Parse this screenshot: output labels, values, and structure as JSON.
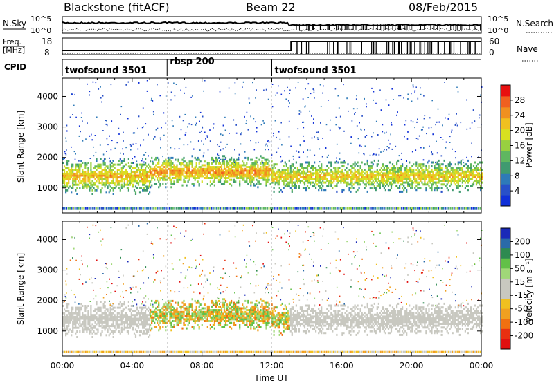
{
  "header": {
    "station": "Blackstone (fitACF)",
    "beam": "Beam 22",
    "date": "08/Feb/2015"
  },
  "noise_panel": {
    "left_label": "N.Sky",
    "right_label": "N.Search",
    "ticks_left": [
      "10^5",
      "10^0"
    ],
    "ticks_right": [
      "10^5",
      "10^0"
    ]
  },
  "freq_panel": {
    "left_label_line1": "Freq.",
    "left_label_line2": "[MHz]",
    "right_label": "Nave",
    "ticks_left": [
      "18",
      "8"
    ],
    "ticks_right": [
      "60",
      "0"
    ]
  },
  "cpid_panel": {
    "label": "CPID",
    "segments": [
      {
        "name": "twofsound 3501",
        "start_hour": 0,
        "end_hour": 6
      },
      {
        "name": "rbsp 200",
        "start_hour": 6,
        "end_hour": 12
      },
      {
        "name": "twofsound 3501",
        "start_hour": 12,
        "end_hour": 24
      }
    ]
  },
  "chart_data": [
    {
      "type": "heatmap",
      "title": "",
      "ylabel": "Slant Range [km]",
      "xlabel": "Time UT",
      "xlim": [
        0,
        24
      ],
      "ylim": [
        180,
        4600
      ],
      "yticks": [
        1000,
        2000,
        3000,
        4000
      ],
      "colorbar_label": "Power [dB]",
      "colorbar_ticks": [
        "4",
        "8",
        "12",
        "16",
        "20",
        "24",
        "28"
      ],
      "colorbar_colors": [
        "#1030d8",
        "#2850c8",
        "#2e7ab8",
        "#3f9a70",
        "#5fb760",
        "#98d040",
        "#d8e020",
        "#f0c020",
        "#f09020",
        "#f06020",
        "#e81010"
      ],
      "echo_bands": [
        {
          "t_start": 0.0,
          "t_end": 5.0,
          "range_center_km": 1350,
          "range_width_km": 500,
          "level": 0.75
        },
        {
          "t_start": 5.0,
          "t_end": 12.0,
          "range_center_km": 1500,
          "range_width_km": 450,
          "level": 0.8
        },
        {
          "t_start": 12.0,
          "t_end": 24.0,
          "range_center_km": 1350,
          "range_width_km": 450,
          "level": 0.7
        }
      ]
    },
    {
      "type": "heatmap",
      "title": "",
      "ylabel": "Slant Range [km]",
      "xlabel": "Time UT",
      "xlim": [
        0,
        24
      ],
      "ylim": [
        180,
        4600
      ],
      "yticks": [
        1000,
        2000,
        3000,
        4000
      ],
      "xticks": [
        "00:00",
        "04:00",
        "08:00",
        "12:00",
        "16:00",
        "20:00",
        "00:00"
      ],
      "colorbar_label": "Velocity [m s⁻¹]",
      "colorbar_ticks": [
        "200",
        "100",
        "50",
        "15",
        "-15",
        "-50",
        "-100",
        "-200"
      ],
      "colorbar_colors": [
        "#1a2ab8",
        "#2a6aa8",
        "#2e8a50",
        "#62c048",
        "#a0d878",
        "#c8c8c0",
        "#c8c8c0",
        "#f0c020",
        "#f0a020",
        "#f07010",
        "#e83010",
        "#e01010"
      ]
    }
  ]
}
